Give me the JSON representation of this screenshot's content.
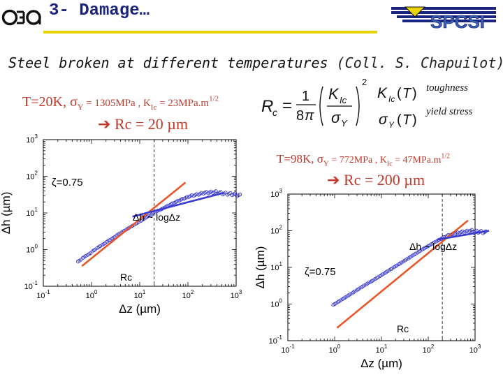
{
  "header": {
    "logo_left": "cea",
    "title": "3- Damage…",
    "logo_right": "SPCSI"
  },
  "subtitle": {
    "text": "Steel broken at different temperatures ",
    "credit": "(Coll. S. Chapuilot)"
  },
  "formula": {
    "toughness_label": "toughness",
    "yield_label": "yield stress"
  },
  "cond1": {
    "prefix": "T=20K, ",
    "sigma": "σ",
    "sigma_sub": "Y",
    "mid": " = 1305MPa  , K",
    "k_sub": "Ic",
    "after": " = 23MPa.m",
    "sup": "1/2"
  },
  "rc1": {
    "arrow": "➔",
    "text": " Rc = 20 µm"
  },
  "cond2": {
    "prefix": "T=98K, ",
    "sigma": "σ",
    "sigma_sub": "Y",
    "mid": " = 772MPa  , K",
    "k_sub": "Ic",
    "after": " = 47MPa.m",
    "sup": "1/2"
  },
  "rc2": {
    "arrow": "➔",
    "text": " Rc = 200 µm"
  },
  "chart_data": [
    {
      "type": "scatter",
      "title": "",
      "xlabel": "Δz (µm)",
      "ylabel": "Δh (µm)",
      "xscale": "log",
      "yscale": "log",
      "xlim_exp": [
        -1,
        3
      ],
      "ylim_exp": [
        -1,
        3
      ],
      "xticks": [
        {
          "base": "10",
          "exp": "-1"
        },
        {
          "base": "10",
          "exp": "0"
        },
        {
          "base": "10",
          "exp": "1"
        },
        {
          "base": "10",
          "exp": "2"
        },
        {
          "base": "10",
          "exp": "3"
        }
      ],
      "yticks": [
        {
          "base": "10",
          "exp": "-1"
        },
        {
          "base": "10",
          "exp": "0"
        },
        {
          "base": "10",
          "exp": "1"
        },
        {
          "base": "10",
          "exp": "2"
        },
        {
          "base": "10",
          "exp": "3"
        }
      ],
      "annotations": {
        "zeta": "ζ=0.75",
        "law": "Δh ~ logΔz",
        "rc": "Rc"
      },
      "rc_log10": 1.3,
      "series_points": [
        [
          -0.25,
          -0.3
        ],
        [
          -0.15,
          -0.2
        ],
        [
          -0.05,
          -0.12
        ],
        [
          0.05,
          -0.02
        ],
        [
          0.15,
          0.07
        ],
        [
          0.25,
          0.15
        ],
        [
          0.35,
          0.24
        ],
        [
          0.45,
          0.32
        ],
        [
          0.55,
          0.41
        ],
        [
          0.65,
          0.49
        ],
        [
          0.75,
          0.57
        ],
        [
          0.85,
          0.65
        ],
        [
          0.95,
          0.73
        ],
        [
          1.05,
          0.81
        ],
        [
          1.15,
          0.89
        ],
        [
          1.25,
          0.96
        ],
        [
          1.35,
          1.04
        ],
        [
          1.45,
          1.1
        ],
        [
          1.55,
          1.17
        ],
        [
          1.65,
          1.24
        ],
        [
          1.75,
          1.3
        ],
        [
          1.85,
          1.36
        ],
        [
          1.95,
          1.41
        ],
        [
          2.05,
          1.46
        ],
        [
          2.15,
          1.49
        ],
        [
          2.25,
          1.52
        ],
        [
          2.35,
          1.55
        ],
        [
          2.45,
          1.56
        ],
        [
          2.55,
          1.57
        ],
        [
          2.65,
          1.55
        ],
        [
          2.75,
          1.53
        ],
        [
          2.85,
          1.52
        ],
        [
          2.95,
          1.51
        ],
        [
          3.05,
          1.48
        ]
      ],
      "power_law": [
        [
          -0.2,
          -0.45
        ],
        [
          1.95,
          1.83
        ]
      ],
      "log_law": [
        [
          0.85,
          0.9
        ],
        [
          2.75,
          1.55
        ]
      ]
    },
    {
      "type": "scatter",
      "title": "",
      "xlabel": "Δz (µm)",
      "ylabel": "Δh (µm)",
      "xscale": "log",
      "yscale": "log",
      "xlim_exp": [
        -1,
        3
      ],
      "ylim_exp": [
        -1,
        3
      ],
      "xticks": [
        {
          "base": "10",
          "exp": "-1"
        },
        {
          "base": "10",
          "exp": "0"
        },
        {
          "base": "10",
          "exp": "1"
        },
        {
          "base": "10",
          "exp": "2"
        },
        {
          "base": "10",
          "exp": "3"
        }
      ],
      "yticks": [
        {
          "base": "10",
          "exp": "-1"
        },
        {
          "base": "10",
          "exp": "0"
        },
        {
          "base": "10",
          "exp": "1"
        },
        {
          "base": "10",
          "exp": "2"
        },
        {
          "base": "10",
          "exp": "3"
        }
      ],
      "annotations": {
        "zeta": "ζ=0.75",
        "law": "Δh ~ logΔz",
        "rc": "Rc"
      },
      "rc_log10": 2.3,
      "series_points": [
        [
          0.0,
          0.0
        ],
        [
          0.1,
          0.08
        ],
        [
          0.2,
          0.16
        ],
        [
          0.3,
          0.24
        ],
        [
          0.4,
          0.32
        ],
        [
          0.5,
          0.4
        ],
        [
          0.6,
          0.48
        ],
        [
          0.7,
          0.56
        ],
        [
          0.8,
          0.63
        ],
        [
          0.9,
          0.71
        ],
        [
          1.0,
          0.79
        ],
        [
          1.1,
          0.87
        ],
        [
          1.2,
          0.95
        ],
        [
          1.3,
          1.03
        ],
        [
          1.4,
          1.11
        ],
        [
          1.5,
          1.19
        ],
        [
          1.6,
          1.27
        ],
        [
          1.7,
          1.35
        ],
        [
          1.8,
          1.43
        ],
        [
          1.9,
          1.51
        ],
        [
          2.0,
          1.58
        ],
        [
          2.1,
          1.66
        ],
        [
          2.2,
          1.73
        ],
        [
          2.3,
          1.8
        ],
        [
          2.4,
          1.86
        ],
        [
          2.5,
          1.9
        ],
        [
          2.6,
          1.93
        ],
        [
          2.7,
          1.96
        ],
        [
          2.8,
          1.98
        ],
        [
          2.9,
          2.0
        ],
        [
          3.0,
          1.98
        ],
        [
          3.1,
          1.97
        ],
        [
          3.2,
          1.96
        ]
      ],
      "power_law": [
        [
          0.05,
          -0.65
        ],
        [
          2.85,
          2.28
        ]
      ],
      "log_law": [
        [
          2.2,
          1.76
        ],
        [
          3.3,
          2.0
        ]
      ]
    }
  ]
}
